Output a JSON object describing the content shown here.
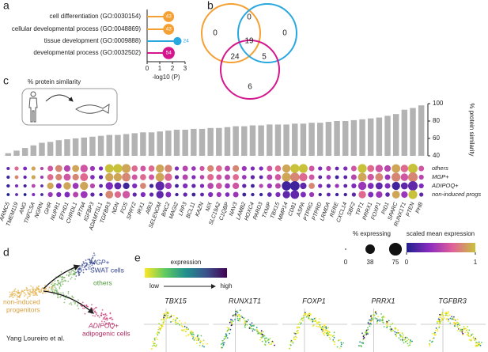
{
  "panel_labels": [
    "a",
    "b",
    "c",
    "d",
    "e"
  ],
  "chart_data": [
    {
      "type": "lollipop",
      "categories": [
        "cell differentiation (GO:0030154)",
        "cellular developmental process (GO:0048869)",
        "tissue development (GO:0009888)",
        "developmental process (GO:0032502)"
      ],
      "values": [
        1.7,
        1.7,
        2.4,
        1.7
      ],
      "sizes": [
        43,
        43,
        24,
        54
      ],
      "colors": [
        "#f5a033",
        "#f5a033",
        "#29a8e0",
        "#d4168c"
      ],
      "xlabel": "-log10 (P)",
      "xlim": [
        0,
        3
      ],
      "xticks": [
        0,
        1,
        2,
        3
      ]
    },
    {
      "type": "venn",
      "colors": [
        "#f5a033",
        "#29a8e0",
        "#d4168c"
      ],
      "values": [
        0,
        0,
        6,
        0,
        24,
        5,
        19
      ]
    },
    {
      "type": "bar",
      "categories": [
        "ARMC5",
        "TMEM119",
        "ANG",
        "TNFCSA",
        "NGRN",
        "GHR",
        "NUPR1",
        "EFHD1",
        "CHRDL1",
        "RTN4",
        "IGFBP3",
        "ADAMTSL1",
        "TGFBR3",
        "NDN",
        "FOS",
        "SPRY2",
        "IRX1",
        "ABI3",
        "SELENOM",
        "BNC2",
        "MAGI2",
        "LRP3",
        "BCL11",
        "KAZN",
        "NIX",
        "SLC19A2",
        "C1QBP",
        "NAV3",
        "LAMB2",
        "HOXC4",
        "PARD3",
        "TXNIP",
        "TBX15",
        "MMP14",
        "CD81",
        "ASPA",
        "PTPRG",
        "PTPRD",
        "LRMDA",
        "RERE",
        "CXCL14",
        "SBF2",
        "TPT1",
        "PRRX1",
        "FOXP1",
        "PID1",
        "SPARC",
        "RUNX1T1",
        "PTEN",
        "PHB"
      ],
      "values": [
        43,
        46,
        49,
        52,
        55,
        56,
        58,
        59,
        60,
        61,
        62,
        63,
        64,
        64,
        65,
        66,
        67,
        67,
        68,
        69,
        70,
        70,
        71,
        71,
        72,
        72,
        73,
        74,
        74,
        75,
        75,
        76,
        76,
        76,
        77,
        77,
        78,
        78,
        79,
        80,
        80,
        81,
        82,
        83,
        84,
        86,
        88,
        93,
        95,
        98
      ],
      "color": "#b3b3b3",
      "ylabel": "% protein similarity",
      "ylim": [
        40,
        100
      ],
      "yticks": [
        40,
        60,
        80,
        100
      ]
    },
    {
      "type": "dotplot",
      "series": [
        {
          "name": "others",
          "sizes": [
            5,
            10,
            8,
            10,
            6,
            20,
            35,
            30,
            35,
            40,
            15,
            10,
            55,
            60,
            60,
            25,
            20,
            25,
            50,
            40,
            10,
            20,
            12,
            15,
            30,
            25,
            20,
            30,
            15,
            10,
            10,
            20,
            25,
            50,
            60,
            60,
            20,
            10,
            15,
            8,
            10,
            20,
            60,
            35,
            40,
            30,
            55,
            40,
            70,
            20
          ],
          "values": [
            0.2,
            0.7,
            0.3,
            0.9,
            0.5,
            0.6,
            0.8,
            0.5,
            0.9,
            0.6,
            0.4,
            0.3,
            1,
            1,
            0.9,
            0.7,
            0.6,
            0.7,
            0.9,
            0.8,
            0.3,
            0.5,
            0.4,
            0.6,
            0.8,
            0.7,
            0.5,
            0.8,
            0.4,
            0.3,
            0.3,
            0.6,
            0.7,
            0.9,
            1,
            1,
            0.6,
            0.3,
            0.5,
            0.2,
            0.3,
            0.6,
            1,
            0.7,
            0.6,
            0.5,
            0.9,
            0.7,
            1,
            0.6
          ]
        },
        {
          "name": "MGP+",
          "sizes": [
            5,
            8,
            6,
            10,
            5,
            25,
            30,
            35,
            30,
            45,
            12,
            10,
            50,
            50,
            55,
            20,
            25,
            20,
            55,
            40,
            10,
            20,
            10,
            12,
            28,
            20,
            20,
            25,
            12,
            10,
            8,
            20,
            25,
            60,
            65,
            50,
            20,
            8,
            12,
            8,
            8,
            20,
            55,
            30,
            45,
            20,
            60,
            40,
            72,
            15
          ],
          "values": [
            0.1,
            0.8,
            0.2,
            0.9,
            0.4,
            0.7,
            0.8,
            0.6,
            0.8,
            0.7,
            0.3,
            0.2,
            0.9,
            0.9,
            0.8,
            0.6,
            0.7,
            0.6,
            0.9,
            0.7,
            0.2,
            0.5,
            0.3,
            0.5,
            0.7,
            0.6,
            0.5,
            0.7,
            0.4,
            0.2,
            0.2,
            0.5,
            0.6,
            0.9,
            0.8,
            0.7,
            0.6,
            0.2,
            0.4,
            0.1,
            0.2,
            0.5,
            0.9,
            0.6,
            0.8,
            0.4,
            0.8,
            0.6,
            0.8,
            0.5
          ]
        },
        {
          "name": "ADIPOQ+",
          "sizes": [
            6,
            5,
            5,
            8,
            4,
            30,
            20,
            40,
            25,
            50,
            15,
            8,
            40,
            35,
            30,
            15,
            25,
            10,
            60,
            30,
            8,
            15,
            10,
            10,
            25,
            25,
            18,
            30,
            10,
            8,
            10,
            15,
            20,
            65,
            70,
            30,
            25,
            10,
            10,
            10,
            8,
            15,
            50,
            25,
            35,
            20,
            50,
            35,
            70,
            15
          ],
          "values": [
            0.1,
            0.3,
            0.1,
            0.5,
            0.2,
            0.9,
            0.3,
            0.9,
            0.4,
            0.9,
            0.5,
            0.2,
            0.3,
            0.2,
            0.1,
            0.3,
            0.8,
            0.1,
            0.2,
            0.4,
            0.1,
            0.3,
            0.2,
            0.3,
            0.5,
            0.6,
            0.4,
            0.6,
            0.2,
            0.1,
            0.5,
            0.4,
            0.5,
            0.1,
            0.1,
            0.2,
            0.8,
            0.3,
            0.2,
            0.4,
            0.2,
            0.3,
            0.4,
            0.3,
            0.2,
            0.3,
            0.1,
            0.2,
            0.2,
            0.3
          ]
        },
        {
          "name": "non-induced progs",
          "sizes": [
            4,
            4,
            4,
            5,
            4,
            15,
            15,
            20,
            20,
            35,
            10,
            6,
            45,
            30,
            40,
            10,
            15,
            10,
            40,
            20,
            6,
            10,
            8,
            8,
            15,
            15,
            12,
            20,
            8,
            6,
            6,
            12,
            15,
            40,
            55,
            20,
            15,
            6,
            8,
            6,
            6,
            10,
            40,
            20,
            30,
            12,
            45,
            30,
            60,
            10
          ],
          "values": [
            0,
            0.2,
            0,
            0.3,
            0.1,
            0.4,
            0.3,
            0.3,
            0.5,
            0.4,
            0.2,
            0.1,
            0.8,
            0.7,
            0.6,
            0.2,
            0.3,
            0.2,
            0.2,
            0.3,
            0.1,
            0.2,
            0.1,
            0.2,
            0.3,
            0.4,
            0.3,
            0.4,
            0.1,
            0.1,
            0.1,
            0.2,
            0.3,
            0.2,
            0.2,
            0.3,
            0.4,
            0.1,
            0.2,
            0.1,
            0.1,
            0.2,
            0.7,
            0.3,
            0.4,
            0.2,
            0.9,
            0.4,
            1,
            0.2
          ]
        }
      ],
      "size_title": "% expressing",
      "sizelim": [
        0,
        75
      ],
      "size_ticks": [
        0,
        38,
        75
      ],
      "color_title": "scaled mean expression",
      "colorlim": [
        0,
        1
      ],
      "color_ticks": [
        0,
        1
      ],
      "colorscale": [
        "#20208c",
        "#8a2cc0",
        "#e0609a",
        "#c8c23a"
      ]
    }
  ],
  "illustration_label": "% protein similarity",
  "umap": {
    "labels": [
      "MGP+",
      "SWAT cells",
      "others",
      "non-induced",
      "progenitors",
      "ADIPOQ+",
      "adipogenic cells"
    ],
    "citation": "Yang Loureiro et al."
  },
  "feature_plots": {
    "legend_title": "expression",
    "low": "low",
    "high": "high",
    "genes": [
      "TBX15",
      "RUNX1T1",
      "FOXP1",
      "PRRX1",
      "TGFBR3"
    ]
  }
}
